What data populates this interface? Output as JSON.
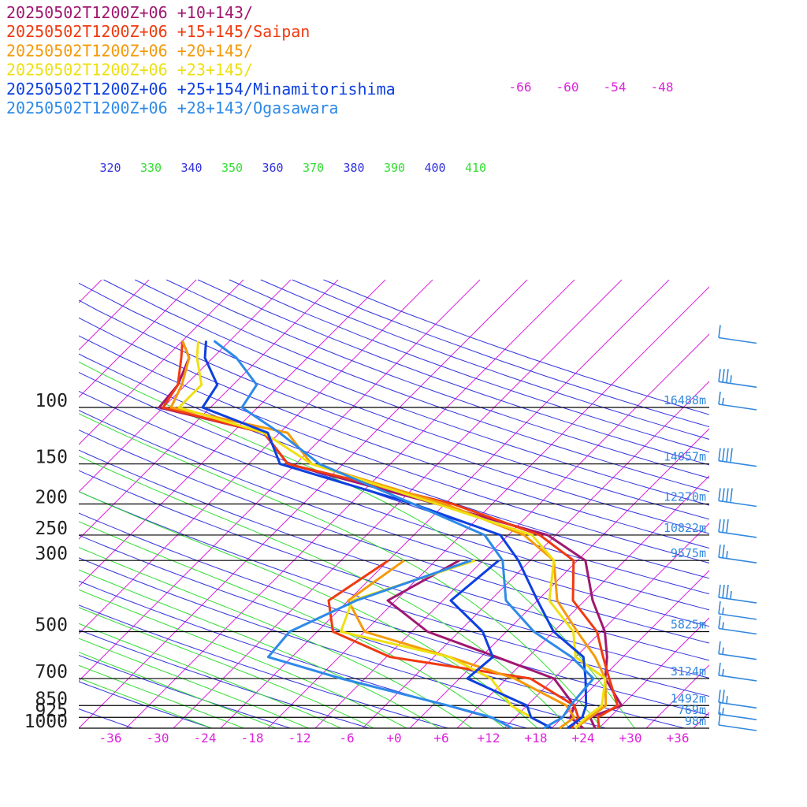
{
  "colors": {
    "isobar": "#000000",
    "isotherm": "#dd22dd",
    "dry_adiabat": "#3333dd",
    "moist_adiabat": "#33dd33",
    "height_label": "#3388dd",
    "barb": "#3388dd"
  },
  "legend": [
    {
      "text": "20250502T1200Z+06 +10+143/",
      "color": "#a01870"
    },
    {
      "text": "20250502T1200Z+06 +15+145/Saipan",
      "color": "#f03a10"
    },
    {
      "text": "20250502T1200Z+06 +20+145/",
      "color": "#f59a0a"
    },
    {
      "text": "20250502T1200Z+06 +23+145/",
      "color": "#eee012"
    },
    {
      "text": "20250502T1200Z+06 +25+154/Minamitorishima",
      "color": "#0e40e0"
    },
    {
      "text": "20250502T1200Z+06 +28+143/Ogasawara",
      "color": "#2e8ae8"
    }
  ],
  "chart_data": {
    "type": "line",
    "title": "",
    "xlabel": "",
    "ylabel": "",
    "xlim": [
      -40,
      40
    ],
    "pressure_levels": [
      {
        "p": 100,
        "label": "100",
        "height": "16488m"
      },
      {
        "p": 150,
        "label": "150",
        "height": "14057m"
      },
      {
        "p": 200,
        "label": "200",
        "height": "12270m"
      },
      {
        "p": 250,
        "label": "250",
        "height": "10822m"
      },
      {
        "p": 300,
        "label": "300",
        "height": "9575m"
      },
      {
        "p": 500,
        "label": "500",
        "height": "5825m"
      },
      {
        "p": 700,
        "label": "700",
        "height": "3124m"
      },
      {
        "p": 850,
        "label": "850",
        "height": "1492m"
      },
      {
        "p": 925,
        "label": "925",
        "height": "769m"
      },
      {
        "p": 1000,
        "label": "1000",
        "height": "98m"
      }
    ],
    "temperature_ticks": [
      "-36",
      "-30",
      "-24",
      "-18",
      "-12",
      "-6",
      "+0",
      "+6",
      "+12",
      "+18",
      "+24",
      "+30",
      "+36"
    ],
    "temperature_tick_values": [
      -36,
      -30,
      -24,
      -18,
      -12,
      -6,
      0,
      6,
      12,
      18,
      24,
      30,
      36
    ],
    "upper_isotherm_labels": [
      {
        "label": "-66",
        "t": -66
      },
      {
        "label": "-60",
        "t": -60
      },
      {
        "label": "-54",
        "t": -54
      },
      {
        "label": "-48",
        "t": -48
      }
    ],
    "theta_labels": [
      {
        "label": "320",
        "kind": "dry"
      },
      {
        "label": "330",
        "kind": "moist"
      },
      {
        "label": "340",
        "kind": "dry"
      },
      {
        "label": "350",
        "kind": "moist"
      },
      {
        "label": "360",
        "kind": "dry"
      },
      {
        "label": "370",
        "kind": "moist"
      },
      {
        "label": "380",
        "kind": "dry"
      },
      {
        "label": "390",
        "kind": "moist"
      },
      {
        "label": "400",
        "kind": "dry"
      },
      {
        "label": "410",
        "kind": "moist"
      }
    ],
    "series": [
      {
        "name": "20250502T1200Z+06 +10+143/",
        "color": "#a01870",
        "temperature": [
          [
            1000,
            25.5
          ],
          [
            925,
            23.5
          ],
          [
            850,
            26
          ],
          [
            700,
            20.5
          ],
          [
            600,
            18
          ],
          [
            500,
            14.5
          ],
          [
            400,
            9
          ],
          [
            300,
            3
          ],
          [
            250,
            -5
          ],
          [
            200,
            -23
          ],
          [
            150,
            -47
          ],
          [
            120,
            -54
          ],
          [
            100,
            -70.5
          ],
          [
            85,
            -71
          ],
          [
            70,
            -73
          ],
          [
            62,
            -76
          ]
        ],
        "dewpoint": [
          [
            1000,
            24
          ],
          [
            925,
            21
          ],
          [
            850,
            20
          ],
          [
            700,
            14
          ],
          [
            600,
            4
          ],
          [
            500,
            -8
          ],
          [
            400,
            -17
          ],
          [
            300,
            -13
          ]
        ]
      },
      {
        "name": "20250502T1200Z+06 +15+145/Saipan",
        "color": "#f03a10",
        "temperature": [
          [
            1000,
            26
          ],
          [
            925,
            24.5
          ],
          [
            850,
            25.5
          ],
          [
            700,
            21
          ],
          [
            600,
            17.5
          ],
          [
            500,
            13.5
          ],
          [
            400,
            6.5
          ],
          [
            300,
            1.5
          ],
          [
            250,
            -6
          ],
          [
            200,
            -21
          ],
          [
            150,
            -47
          ],
          [
            120,
            -54
          ],
          [
            100,
            -70
          ],
          [
            85,
            -71
          ],
          [
            70,
            -74
          ],
          [
            62,
            -76
          ]
        ],
        "dewpoint": [
          [
            1000,
            22.5
          ],
          [
            925,
            22
          ],
          [
            850,
            20
          ],
          [
            700,
            11
          ],
          [
            600,
            -9.5
          ],
          [
            500,
            -20
          ],
          [
            400,
            -24.5
          ],
          [
            300,
            -22
          ]
        ]
      },
      {
        "name": "20250502T1200Z+06 +20+145/",
        "color": "#f59a0a",
        "temperature": [
          [
            1000,
            23
          ],
          [
            925,
            23.5
          ],
          [
            850,
            24
          ],
          [
            700,
            20.5
          ],
          [
            600,
            16.5
          ],
          [
            500,
            11
          ],
          [
            400,
            4.5
          ],
          [
            300,
            -1
          ],
          [
            250,
            -8
          ],
          [
            200,
            -22
          ],
          [
            150,
            -44
          ],
          [
            120,
            -51
          ],
          [
            100,
            -69
          ],
          [
            85,
            -70.5
          ],
          [
            70,
            -73
          ],
          [
            62,
            -76
          ]
        ],
        "dewpoint": [
          [
            1000,
            21
          ],
          [
            925,
            21.5
          ],
          [
            850,
            19
          ],
          [
            700,
            9
          ],
          [
            600,
            -2
          ],
          [
            500,
            -16
          ],
          [
            400,
            -22
          ],
          [
            300,
            -20
          ]
        ]
      },
      {
        "name": "20250502T1200Z+06 +23+145/",
        "color": "#eee012",
        "temperature": [
          [
            1000,
            23
          ],
          [
            925,
            23
          ],
          [
            850,
            23.5
          ],
          [
            700,
            20.5
          ],
          [
            600,
            14
          ],
          [
            500,
            10.5
          ],
          [
            400,
            3.5
          ],
          [
            300,
            -1
          ],
          [
            250,
            -7
          ],
          [
            200,
            -23
          ],
          [
            150,
            -44
          ],
          [
            120,
            -54
          ],
          [
            100,
            -68
          ],
          [
            85,
            -68
          ],
          [
            70,
            -72
          ],
          [
            62,
            -74
          ]
        ],
        "dewpoint": [
          [
            1000,
            20
          ],
          [
            925,
            16
          ],
          [
            850,
            12
          ],
          [
            700,
            6
          ],
          [
            600,
            -2
          ],
          [
            500,
            -19
          ],
          [
            400,
            -21.5
          ],
          [
            300,
            -11
          ]
        ]
      },
      {
        "name": "20250502T1200Z+06 +25+154/Minamitorishima",
        "color": "#0e40e0",
        "temperature": [
          [
            1000,
            22
          ],
          [
            925,
            22.5
          ],
          [
            850,
            21.5
          ],
          [
            700,
            18
          ],
          [
            600,
            15
          ],
          [
            500,
            8
          ],
          [
            400,
            2
          ],
          [
            300,
            -5.5
          ],
          [
            250,
            -11
          ],
          [
            200,
            -26
          ],
          [
            150,
            -48
          ],
          [
            120,
            -53.5
          ],
          [
            100,
            -65
          ],
          [
            85,
            -66
          ],
          [
            70,
            -71
          ],
          [
            62,
            -73
          ]
        ],
        "dewpoint": [
          [
            1000,
            20
          ],
          [
            925,
            16
          ],
          [
            850,
            14
          ],
          [
            700,
            3
          ],
          [
            600,
            3.5
          ],
          [
            500,
            -1
          ],
          [
            400,
            -9
          ],
          [
            300,
            -8
          ]
        ]
      },
      {
        "name": "20250502T1200Z+06 +28+143/Ogasawara",
        "color": "#2e8ae8",
        "temperature": [
          [
            1000,
            19
          ],
          [
            925,
            20
          ],
          [
            850,
            19.5
          ],
          [
            700,
            19
          ],
          [
            600,
            13.5
          ],
          [
            500,
            5.5
          ],
          [
            400,
            -2
          ],
          [
            300,
            -7.5
          ],
          [
            250,
            -13
          ],
          [
            200,
            -26
          ],
          [
            150,
            -43
          ],
          [
            120,
            -52
          ],
          [
            100,
            -60
          ],
          [
            85,
            -61
          ],
          [
            70,
            -67
          ],
          [
            62,
            -72
          ]
        ],
        "dewpoint": [
          [
            1000,
            15
          ],
          [
            925,
            11
          ],
          [
            850,
            4
          ],
          [
            700,
            -13
          ],
          [
            600,
            -25
          ],
          [
            500,
            -25.5
          ],
          [
            400,
            -21
          ],
          [
            300,
            -11.5
          ]
        ]
      }
    ],
    "wind_barbs": [
      {
        "p": 62,
        "speed_kt": 10
      },
      {
        "p": 85,
        "speed_kt": 35
      },
      {
        "p": 100,
        "speed_kt": 15
      },
      {
        "p": 150,
        "speed_kt": 40
      },
      {
        "p": 200,
        "speed_kt": 40
      },
      {
        "p": 250,
        "speed_kt": 30
      },
      {
        "p": 300,
        "speed_kt": 25
      },
      {
        "p": 400,
        "speed_kt": 35
      },
      {
        "p": 450,
        "speed_kt": 15
      },
      {
        "p": 500,
        "speed_kt": 15
      },
      {
        "p": 600,
        "speed_kt": 15
      },
      {
        "p": 700,
        "speed_kt": 15
      },
      {
        "p": 850,
        "speed_kt": 25
      },
      {
        "p": 925,
        "speed_kt": 15
      },
      {
        "p": 1000,
        "speed_kt": 10
      }
    ]
  }
}
